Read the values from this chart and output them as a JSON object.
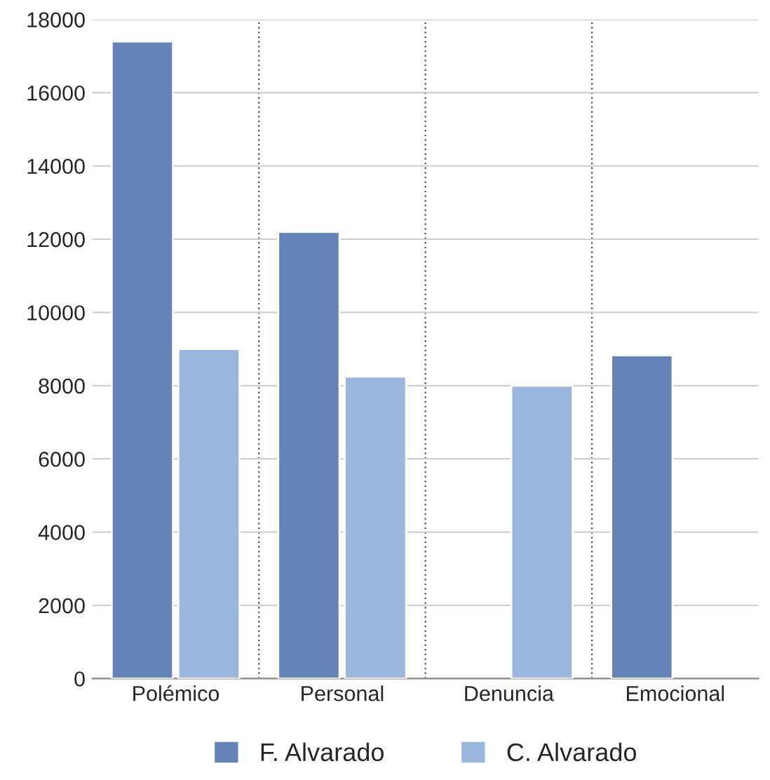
{
  "chart_data": {
    "type": "bar",
    "categories": [
      "Polémico",
      "Personal",
      "Denuncia",
      "Emocional"
    ],
    "series": [
      {
        "name": "F. Alvarado",
        "color": "#6683b8",
        "values": [
          17400,
          12200,
          null,
          8830
        ]
      },
      {
        "name": "C. Alvarado",
        "color": "#9bb6dd",
        "values": [
          9000,
          8250,
          8000,
          null
        ]
      }
    ],
    "ylim": [
      0,
      18000
    ],
    "yticks": [
      0,
      2000,
      4000,
      6000,
      8000,
      10000,
      12000,
      14000,
      16000,
      18000
    ],
    "grid": true,
    "legend": "bottom"
  }
}
